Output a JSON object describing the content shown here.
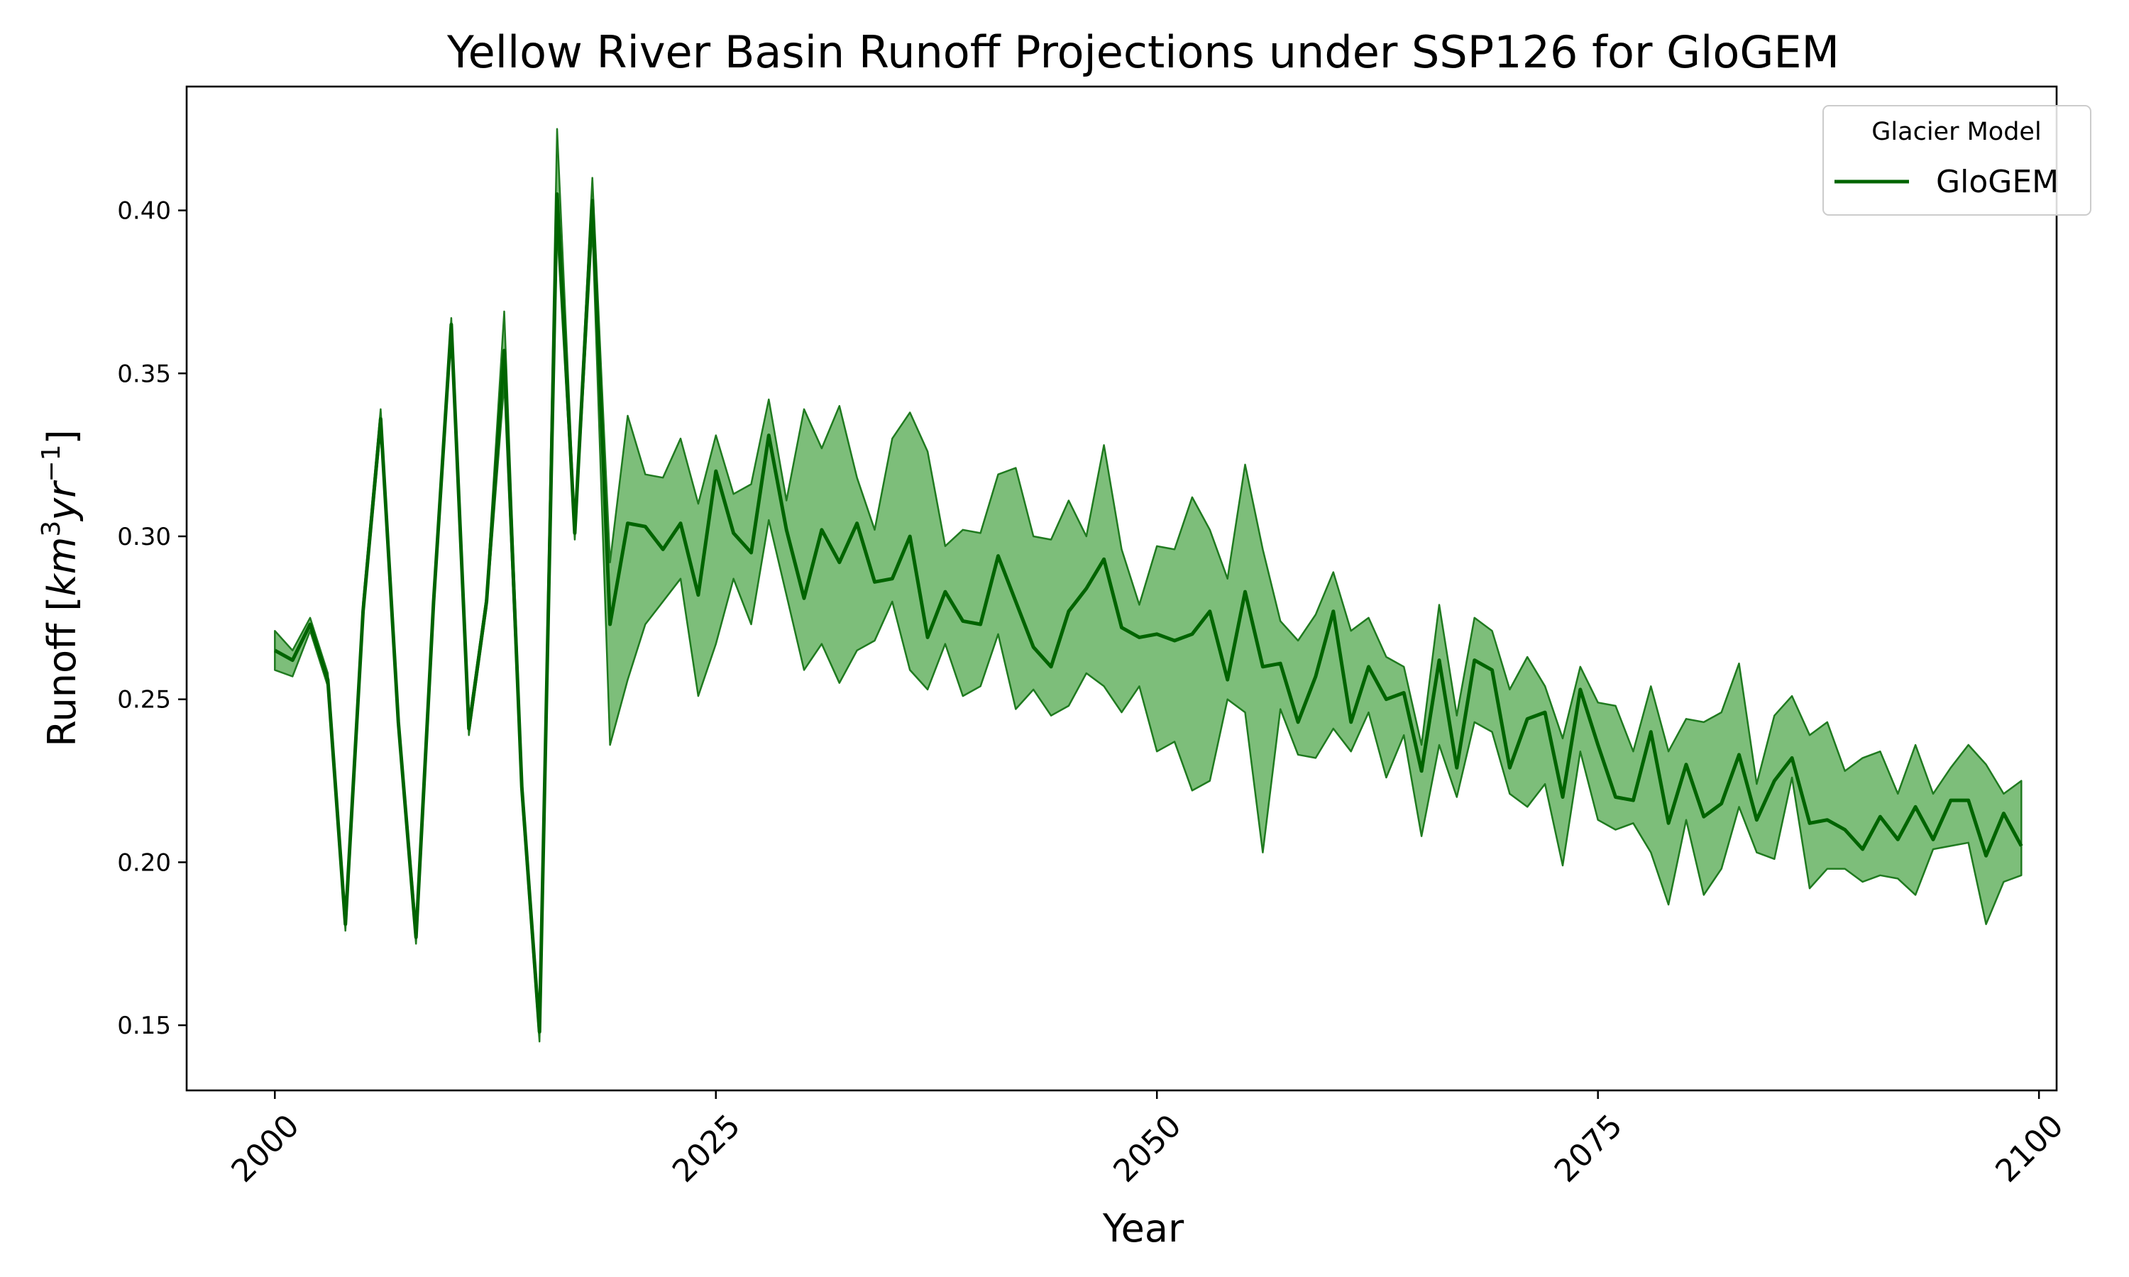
{
  "chart_data": {
    "type": "line",
    "title": "Yellow River Basin Runoff Projections under SSP126 for GloGEM",
    "xlabel": "Year",
    "ylabel_main": "Runoff [",
    "ylabel_unit_base": "km",
    "ylabel_unit_exp1": "3",
    "ylabel_unit_mid": "yr",
    "ylabel_unit_exp2": "−1",
    "ylabel_close": "]",
    "xlim": [
      1995,
      2101
    ],
    "ylim": [
      0.13,
      0.438
    ],
    "xticks": [
      2000,
      2025,
      2050,
      2075,
      2100
    ],
    "yticks": [
      0.15,
      0.2,
      0.25,
      0.3,
      0.35,
      0.4
    ],
    "ytick_labels": [
      "0.15",
      "0.20",
      "0.25",
      "0.30",
      "0.35",
      "0.40"
    ],
    "legend": {
      "title": "Glacier Model",
      "placement": "top-right",
      "entries": [
        "GloGEM"
      ]
    },
    "grid": false,
    "colors": {
      "line": "#006400",
      "band": "#7dbe7a",
      "band_edge": "#1f7a1f"
    },
    "x": [
      2000,
      2001,
      2002,
      2003,
      2004,
      2005,
      2006,
      2007,
      2008,
      2009,
      2010,
      2011,
      2012,
      2013,
      2014,
      2015,
      2016,
      2017,
      2018,
      2019,
      2020,
      2021,
      2022,
      2023,
      2024,
      2025,
      2026,
      2027,
      2028,
      2029,
      2030,
      2031,
      2032,
      2033,
      2034,
      2035,
      2036,
      2037,
      2038,
      2039,
      2040,
      2041,
      2042,
      2043,
      2044,
      2045,
      2046,
      2047,
      2048,
      2049,
      2050,
      2051,
      2052,
      2053,
      2054,
      2055,
      2056,
      2057,
      2058,
      2059,
      2060,
      2061,
      2062,
      2063,
      2064,
      2065,
      2066,
      2067,
      2068,
      2069,
      2070,
      2071,
      2072,
      2073,
      2074,
      2075,
      2076,
      2077,
      2078,
      2079,
      2080,
      2081,
      2082,
      2083,
      2084,
      2085,
      2086,
      2087,
      2088,
      2089,
      2090,
      2091,
      2092,
      2093,
      2094,
      2095,
      2096,
      2097,
      2098,
      2099
    ],
    "series": [
      {
        "name": "GloGEM",
        "values": [
          0.265,
          0.262,
          0.273,
          0.256,
          0.181,
          0.277,
          0.336,
          0.243,
          0.177,
          0.28,
          0.365,
          0.241,
          0.28,
          0.357,
          0.223,
          0.148,
          0.405,
          0.301,
          0.403,
          0.273,
          0.304,
          0.303,
          0.296,
          0.304,
          0.282,
          0.32,
          0.301,
          0.295,
          0.331,
          0.302,
          0.281,
          0.302,
          0.292,
          0.304,
          0.286,
          0.287,
          0.3,
          0.269,
          0.283,
          0.274,
          0.273,
          0.294,
          0.28,
          0.266,
          0.26,
          0.277,
          0.284,
          0.293,
          0.272,
          0.269,
          0.27,
          0.268,
          0.27,
          0.277,
          0.256,
          0.283,
          0.26,
          0.261,
          0.243,
          0.257,
          0.277,
          0.243,
          0.26,
          0.25,
          0.252,
          0.228,
          0.262,
          0.229,
          0.262,
          0.259,
          0.229,
          0.244,
          0.246,
          0.22,
          0.253,
          0.236,
          0.22,
          0.219,
          0.24,
          0.212,
          0.23,
          0.214,
          0.218,
          0.233,
          0.213,
          0.225,
          0.232,
          0.212,
          0.213,
          0.21,
          0.204,
          0.214,
          0.207,
          0.217,
          0.207,
          0.219,
          0.219,
          0.202,
          0.215,
          0.205
        ],
        "upper": [
          0.271,
          0.265,
          0.275,
          0.258,
          0.183,
          0.28,
          0.339,
          0.245,
          0.18,
          0.283,
          0.367,
          0.243,
          0.282,
          0.369,
          0.226,
          0.15,
          0.425,
          0.303,
          0.41,
          0.292,
          0.337,
          0.319,
          0.318,
          0.33,
          0.31,
          0.331,
          0.313,
          0.316,
          0.342,
          0.311,
          0.339,
          0.327,
          0.34,
          0.318,
          0.302,
          0.33,
          0.338,
          0.326,
          0.297,
          0.302,
          0.301,
          0.319,
          0.321,
          0.3,
          0.299,
          0.311,
          0.3,
          0.328,
          0.296,
          0.279,
          0.297,
          0.296,
          0.312,
          0.302,
          0.287,
          0.322,
          0.296,
          0.274,
          0.268,
          0.276,
          0.289,
          0.271,
          0.275,
          0.263,
          0.26,
          0.236,
          0.279,
          0.245,
          0.275,
          0.271,
          0.253,
          0.263,
          0.254,
          0.238,
          0.26,
          0.249,
          0.248,
          0.234,
          0.254,
          0.234,
          0.244,
          0.243,
          0.246,
          0.261,
          0.224,
          0.245,
          0.251,
          0.239,
          0.243,
          0.228,
          0.232,
          0.234,
          0.221,
          0.236,
          0.221,
          0.229,
          0.236,
          0.23,
          0.221,
          0.225
        ],
        "lower": [
          0.259,
          0.257,
          0.271,
          0.254,
          0.179,
          0.275,
          0.333,
          0.241,
          0.175,
          0.278,
          0.363,
          0.239,
          0.278,
          0.347,
          0.22,
          0.145,
          0.395,
          0.299,
          0.395,
          0.236,
          0.256,
          0.273,
          0.28,
          0.287,
          0.251,
          0.267,
          0.287,
          0.273,
          0.305,
          0.282,
          0.259,
          0.267,
          0.255,
          0.265,
          0.268,
          0.28,
          0.259,
          0.253,
          0.267,
          0.251,
          0.254,
          0.27,
          0.247,
          0.253,
          0.245,
          0.248,
          0.258,
          0.254,
          0.246,
          0.254,
          0.234,
          0.237,
          0.222,
          0.225,
          0.25,
          0.246,
          0.203,
          0.247,
          0.233,
          0.232,
          0.241,
          0.234,
          0.246,
          0.226,
          0.239,
          0.208,
          0.236,
          0.22,
          0.243,
          0.24,
          0.221,
          0.217,
          0.224,
          0.199,
          0.234,
          0.213,
          0.21,
          0.212,
          0.203,
          0.187,
          0.213,
          0.19,
          0.198,
          0.217,
          0.203,
          0.201,
          0.226,
          0.192,
          0.198,
          0.198,
          0.194,
          0.196,
          0.195,
          0.19,
          0.204,
          0.205,
          0.206,
          0.181,
          0.194,
          0.196
        ]
      }
    ]
  }
}
